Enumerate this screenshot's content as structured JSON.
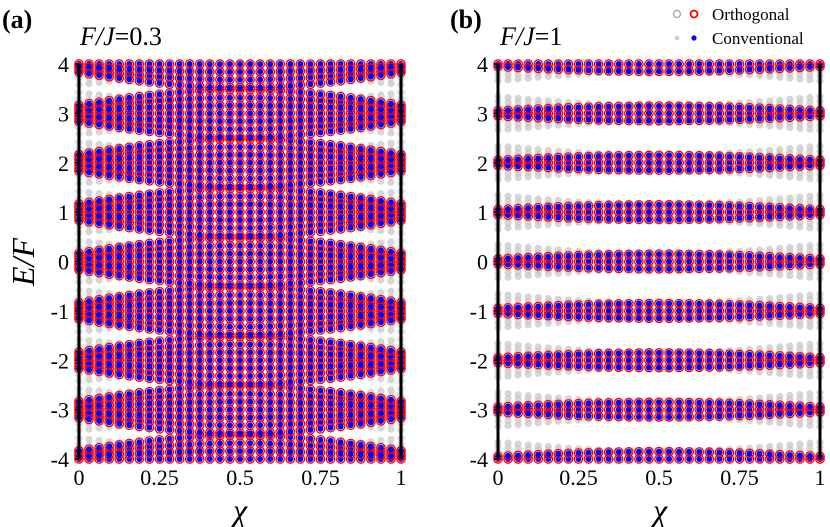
{
  "chart_data": [
    {
      "type": "scatter",
      "panel_label": "(a)",
      "param_label": {
        "italic_part": "F/J",
        "value_part": "=0.3"
      },
      "xlabel": "χ",
      "ylabel": "E/F",
      "xlim": [
        0,
        1
      ],
      "ylim": [
        -4,
        4
      ],
      "xticks": [
        "0",
        "0.25",
        "0.5",
        "0.75",
        "1"
      ],
      "xtick_values": [
        0,
        0.25,
        0.5,
        0.75,
        1
      ],
      "yticks": [
        "-4",
        "-3",
        "-2",
        "-1",
        "0",
        "1",
        "2",
        "3",
        "4"
      ],
      "ytick_values": [
        -4,
        -3,
        -2,
        -1,
        0,
        1,
        2,
        3,
        4
      ],
      "F_over_J": 0.3,
      "x_samples": 33,
      "series": [
        {
          "name": "Orthogonal",
          "style": "red-ring",
          "comment": "levels overlapping gray background"
        },
        {
          "name": "Conventional",
          "style": "blue-dot"
        }
      ],
      "grid": false
    },
    {
      "type": "scatter",
      "panel_label": "(b)",
      "param_label": {
        "italic_part": "F/J",
        "value_part": "=1"
      },
      "xlabel": "χ",
      "ylabel": "",
      "xlim": [
        0,
        1
      ],
      "ylim": [
        -4,
        4
      ],
      "xticks": [
        "0",
        "0.25",
        "0.5",
        "0.75",
        "1"
      ],
      "xtick_values": [
        0,
        0.25,
        0.5,
        0.75,
        1
      ],
      "yticks": [
        "-4",
        "-3",
        "-2",
        "-1",
        "0",
        "1",
        "2",
        "3",
        "4"
      ],
      "ytick_values": [
        -4,
        -3,
        -2,
        -1,
        0,
        1,
        2,
        3,
        4
      ],
      "F_over_J": 1,
      "x_samples": 33,
      "series": [
        {
          "name": "Orthogonal",
          "style": "red-ring"
        },
        {
          "name": "Conventional",
          "style": "blue-dot"
        }
      ],
      "grid": false
    }
  ],
  "legend": {
    "placement": "top-right",
    "entries": [
      {
        "label": "Orthogonal",
        "markers": [
          "gray-ring",
          "red-ring"
        ]
      },
      {
        "label": "Conventional",
        "markers": [
          "gray-dot",
          "blue-dot"
        ]
      }
    ]
  },
  "colors": {
    "orthogonal": "#ff0000",
    "conventional": "#0000ff",
    "background_states": "#c8c8c8",
    "axis": "#000000"
  }
}
